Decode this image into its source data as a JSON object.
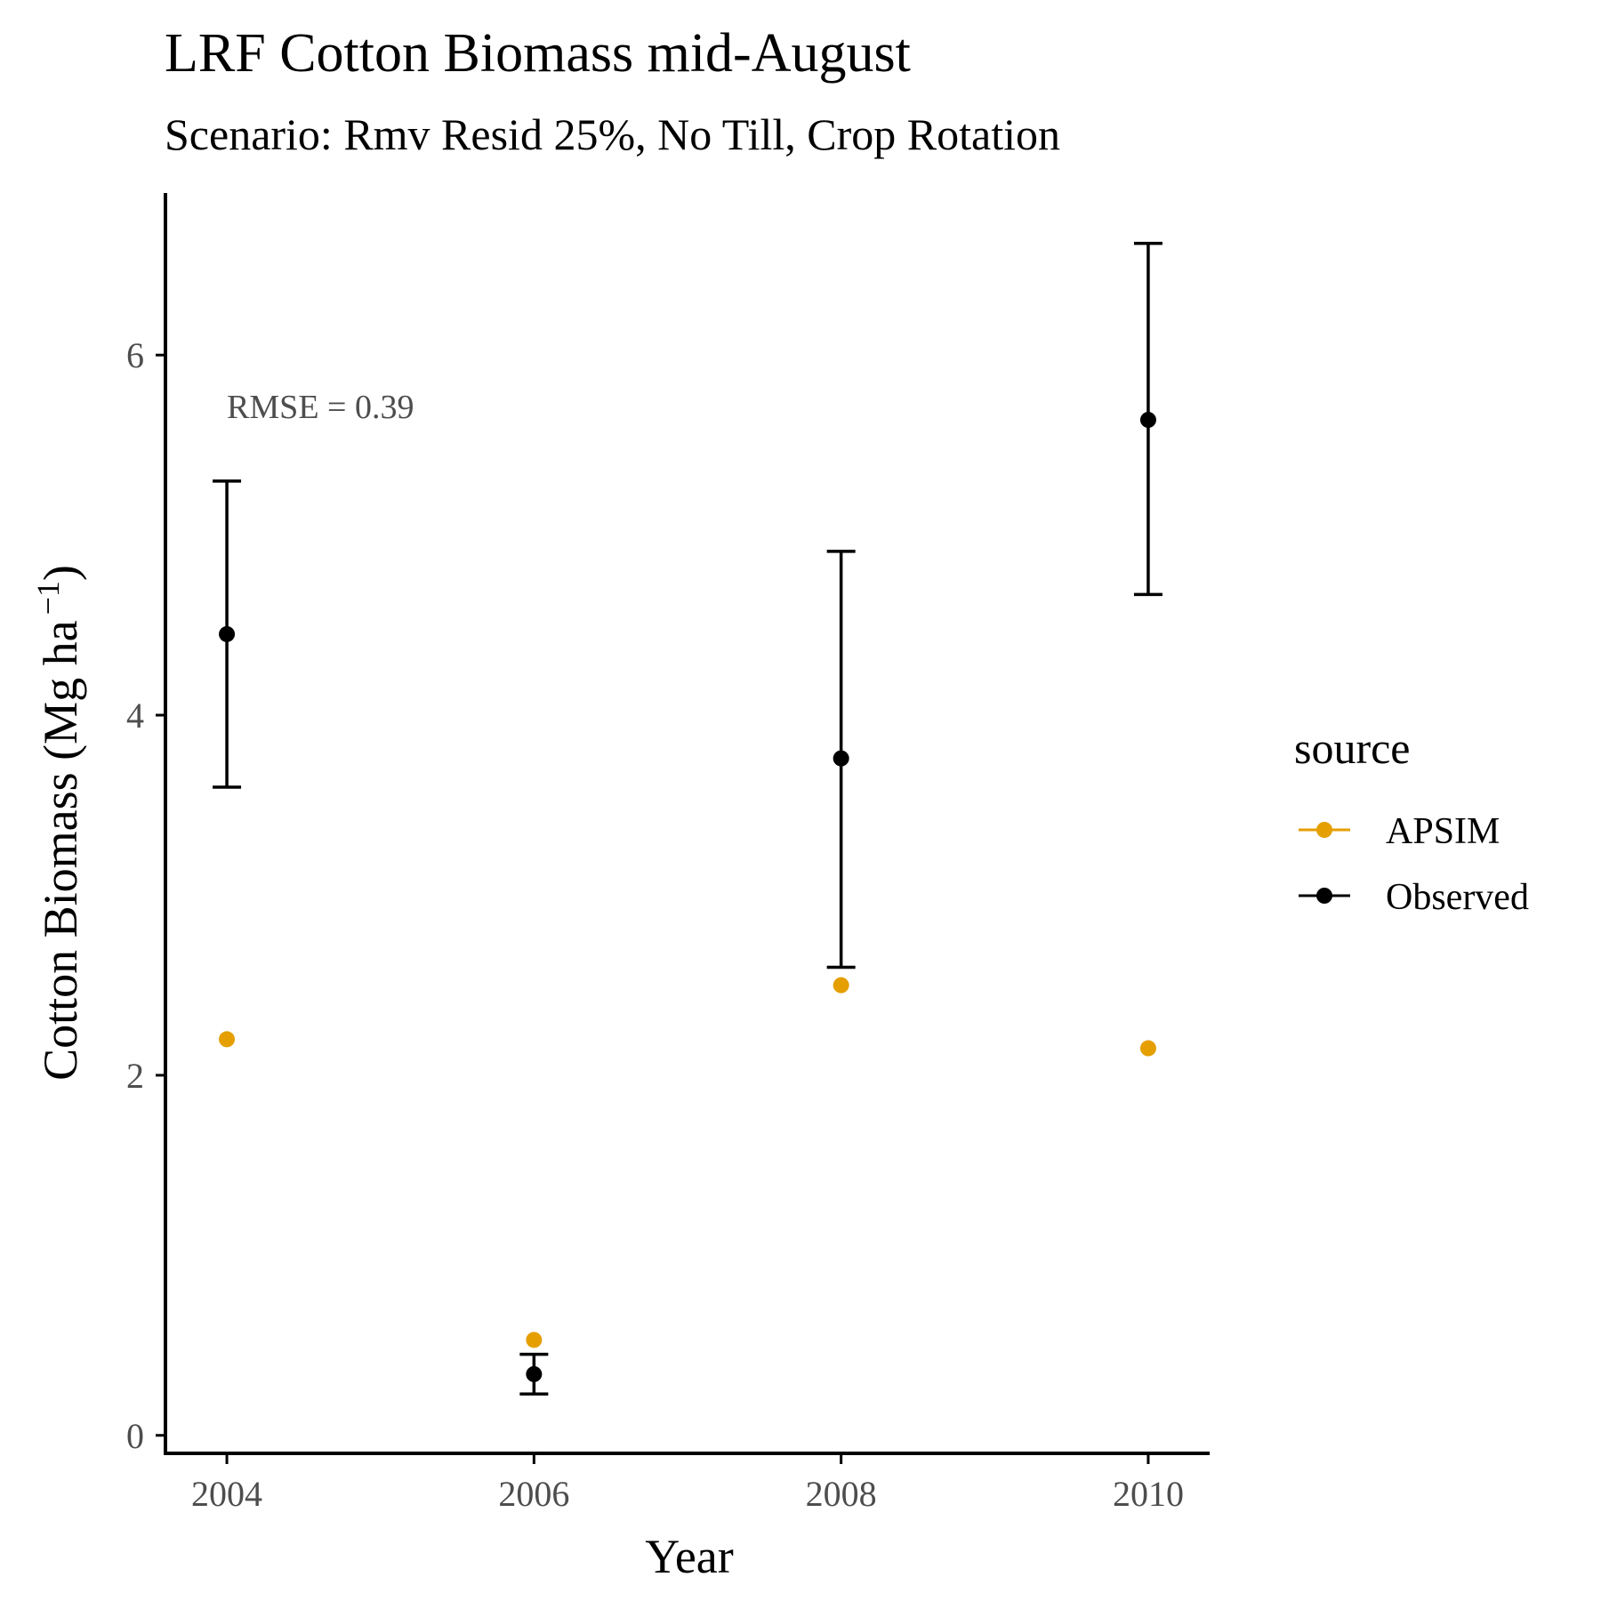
{
  "chart_data": {
    "type": "scatter",
    "title": "LRF Cotton Biomass mid-August",
    "subtitle": "Scenario: Rmv Resid 25%, No Till, Crop Rotation",
    "xlabel": "Year",
    "ylabel_main": "Cotton Biomass (Mg ha",
    "ylabel_sup": "−1",
    "ylabel_close": ")",
    "x_ticks": [
      "2004",
      "2006",
      "2008",
      "2010"
    ],
    "y_ticks": [
      "0",
      "2",
      "4",
      "6"
    ],
    "xlim": [
      2003.6,
      2010.4
    ],
    "ylim": [
      -0.1,
      6.9
    ],
    "grid": false,
    "legend": {
      "title": "source",
      "position": "right",
      "entries": [
        {
          "label": "APSIM",
          "color": "#E69F00"
        },
        {
          "label": "Observed",
          "color": "#000000"
        }
      ]
    },
    "series": [
      {
        "name": "APSIM",
        "color": "#E69F00",
        "points": [
          {
            "x": 2004,
            "y": 2.2
          },
          {
            "x": 2006,
            "y": 0.53
          },
          {
            "x": 2008,
            "y": 2.5
          },
          {
            "x": 2010,
            "y": 2.15
          }
        ]
      },
      {
        "name": "Observed",
        "color": "#000000",
        "points": [
          {
            "x": 2004,
            "y": 4.45,
            "ymin": 3.6,
            "ymax": 5.3
          },
          {
            "x": 2006,
            "y": 0.34,
            "ymin": 0.23,
            "ymax": 0.45
          },
          {
            "x": 2008,
            "y": 3.76,
            "ymin": 2.6,
            "ymax": 4.91
          },
          {
            "x": 2010,
            "y": 5.64,
            "ymin": 4.67,
            "ymax": 6.62
          }
        ]
      }
    ],
    "annotations": [
      {
        "text": "RMSE = 0.39",
        "x": 2004,
        "y": 5.65
      }
    ]
  }
}
